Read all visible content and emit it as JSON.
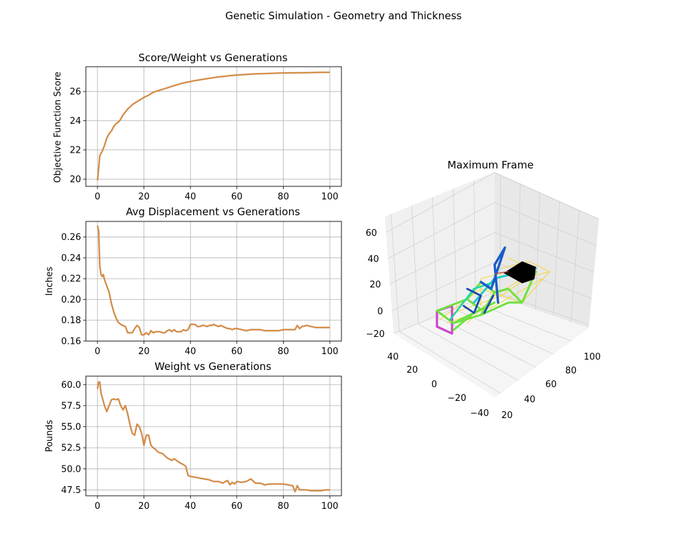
{
  "figure": {
    "suptitle": "Genetic Simulation - Geometry and Thickness"
  },
  "colors": {
    "line": "#d98a3a",
    "line_shadow": "#7a6a8c",
    "grid": "#b0b0b0",
    "axis": "#000000",
    "pane": "#f2f2f2",
    "pane_side": "#e6e6e6"
  },
  "chart_data": [
    {
      "type": "line",
      "title": "Score/Weight vs Generations",
      "xlabel": "",
      "ylabel": "Objective Function Score",
      "xlim": [
        -5,
        105
      ],
      "ylim": [
        19.5,
        27.7
      ],
      "xticks": [
        0,
        20,
        40,
        60,
        80,
        100
      ],
      "yticks": [
        20,
        22,
        24,
        26
      ],
      "grid": true,
      "x": [
        0,
        1,
        2,
        3,
        4,
        5,
        6,
        7,
        8,
        9,
        10,
        11,
        12,
        13,
        14,
        15,
        16,
        17,
        18,
        19,
        20,
        22,
        24,
        26,
        28,
        30,
        32,
        34,
        36,
        38,
        40,
        42,
        44,
        46,
        48,
        50,
        52,
        54,
        56,
        58,
        60,
        62,
        64,
        66,
        68,
        70,
        72,
        74,
        76,
        78,
        80,
        85,
        90,
        95,
        100
      ],
      "y": [
        19.9,
        21.6,
        21.9,
        22.3,
        22.8,
        23.1,
        23.3,
        23.6,
        23.8,
        23.9,
        24.1,
        24.4,
        24.6,
        24.8,
        24.95,
        25.1,
        25.2,
        25.3,
        25.4,
        25.5,
        25.6,
        25.75,
        25.95,
        26.05,
        26.15,
        26.25,
        26.35,
        26.45,
        26.55,
        26.62,
        26.68,
        26.75,
        26.8,
        26.85,
        26.9,
        26.95,
        27.0,
        27.03,
        27.07,
        27.1,
        27.13,
        27.15,
        27.17,
        27.19,
        27.21,
        27.22,
        27.23,
        27.24,
        27.25,
        27.26,
        27.27,
        27.28,
        27.29,
        27.31,
        27.32
      ]
    },
    {
      "type": "line",
      "title": "Avg Displacement vs Generations",
      "xlabel": "",
      "ylabel": "Inches",
      "xlim": [
        -5,
        105
      ],
      "ylim": [
        0.16,
        0.275
      ],
      "xticks": [
        0,
        20,
        40,
        60,
        80,
        100
      ],
      "yticks": [
        0.16,
        0.18,
        0.2,
        0.22,
        0.24,
        0.26
      ],
      "ytick_labels": [
        "0.16",
        "0.18",
        "0.20",
        "0.22",
        "0.24",
        "0.26"
      ],
      "grid": true,
      "x": [
        0,
        0.5,
        1,
        1.5,
        2,
        2.5,
        3,
        4,
        5,
        6,
        7,
        8,
        9,
        10,
        11,
        12,
        13,
        14,
        15,
        16,
        17,
        18,
        19,
        20,
        21,
        22,
        23,
        24,
        25,
        26,
        27,
        28,
        29,
        30,
        31,
        32,
        33,
        34,
        35,
        36,
        37,
        38,
        39,
        40,
        41,
        42,
        43,
        44,
        45,
        46,
        47,
        48,
        49,
        50,
        51,
        52,
        53,
        54,
        55,
        56,
        57,
        58,
        59,
        60,
        62,
        64,
        66,
        68,
        70,
        72,
        74,
        76,
        78,
        80,
        82,
        84,
        85,
        86,
        87,
        88,
        90,
        92,
        94,
        96,
        98,
        100
      ],
      "y": [
        0.271,
        0.266,
        0.232,
        0.224,
        0.222,
        0.224,
        0.219,
        0.213,
        0.207,
        0.196,
        0.188,
        0.182,
        0.178,
        0.176,
        0.175,
        0.174,
        0.168,
        0.168,
        0.168,
        0.172,
        0.175,
        0.173,
        0.166,
        0.166,
        0.168,
        0.166,
        0.17,
        0.168,
        0.169,
        0.169,
        0.169,
        0.168,
        0.168,
        0.17,
        0.171,
        0.169,
        0.171,
        0.169,
        0.169,
        0.169,
        0.171,
        0.17,
        0.171,
        0.176,
        0.176,
        0.176,
        0.174,
        0.174,
        0.175,
        0.175,
        0.174,
        0.175,
        0.175,
        0.176,
        0.175,
        0.174,
        0.175,
        0.174,
        0.173,
        0.172,
        0.172,
        0.171,
        0.172,
        0.172,
        0.171,
        0.17,
        0.171,
        0.171,
        0.171,
        0.17,
        0.17,
        0.17,
        0.17,
        0.171,
        0.171,
        0.171,
        0.171,
        0.175,
        0.172,
        0.174,
        0.175,
        0.174,
        0.173,
        0.173,
        0.173,
        0.173
      ]
    },
    {
      "type": "line",
      "title": "Weight vs Generations",
      "xlabel": "",
      "ylabel": "Pounds",
      "xlim": [
        -5,
        105
      ],
      "ylim": [
        46.8,
        61.0
      ],
      "xticks": [
        0,
        20,
        40,
        60,
        80,
        100
      ],
      "yticks": [
        47.5,
        50.0,
        52.5,
        55.0,
        57.5,
        60.0
      ],
      "ytick_labels": [
        "47.5",
        "50.0",
        "52.5",
        "55.0",
        "57.5",
        "60.0"
      ],
      "grid": true,
      "x": [
        0,
        0.5,
        1,
        1.5,
        2,
        3,
        4,
        5,
        6,
        7,
        8,
        9,
        10,
        11,
        12,
        13,
        14,
        15,
        16,
        17,
        18,
        19,
        20,
        21,
        22,
        23,
        24,
        25,
        26,
        28,
        30,
        32,
        33,
        35,
        37,
        38,
        39,
        40,
        42,
        44,
        46,
        48,
        50,
        52,
        54,
        55,
        56,
        57,
        58,
        59,
        60,
        62,
        64,
        66,
        68,
        70,
        72,
        74,
        76,
        78,
        80,
        82,
        84,
        85,
        86,
        87,
        88,
        90,
        92,
        94,
        96,
        98,
        100
      ],
      "y": [
        59.5,
        60.3,
        60.3,
        59.0,
        58.5,
        57.5,
        56.8,
        57.5,
        58.2,
        58.3,
        58.2,
        58.3,
        57.5,
        57.0,
        57.5,
        56.5,
        55.2,
        54.2,
        54.0,
        55.3,
        55.0,
        54.2,
        52.8,
        54.0,
        54.0,
        52.8,
        52.5,
        52.3,
        52.0,
        51.8,
        51.3,
        51.0,
        51.2,
        50.8,
        50.5,
        50.3,
        49.2,
        49.1,
        49.0,
        48.9,
        48.8,
        48.7,
        48.5,
        48.5,
        48.3,
        48.5,
        48.6,
        48.1,
        48.4,
        48.2,
        48.5,
        48.4,
        48.5,
        48.8,
        48.3,
        48.3,
        48.1,
        48.2,
        48.2,
        48.2,
        48.2,
        48.1,
        48.0,
        47.3,
        48.0,
        47.5,
        47.5,
        47.5,
        47.4,
        47.4,
        47.4,
        47.5,
        47.5
      ]
    },
    {
      "type": "scatter",
      "title": "Maximum Frame",
      "projection": "3d",
      "xlim": [
        20,
        100
      ],
      "ylim": [
        -40,
        40
      ],
      "zlim": [
        -20,
        60
      ],
      "xticks": [
        20,
        40,
        60,
        80,
        100
      ],
      "xtick_labels": [
        "20",
        "40",
        "60",
        "80",
        "100"
      ],
      "yticks": [
        -40,
        -20,
        0,
        20,
        40
      ],
      "ytick_labels": [
        "−40",
        "−20",
        "0",
        "20",
        "40"
      ],
      "zticks": [
        -20,
        0,
        20,
        40,
        60
      ],
      "ztick_labels": [
        "−20",
        "0",
        "20",
        "40",
        "60"
      ]
    }
  ]
}
